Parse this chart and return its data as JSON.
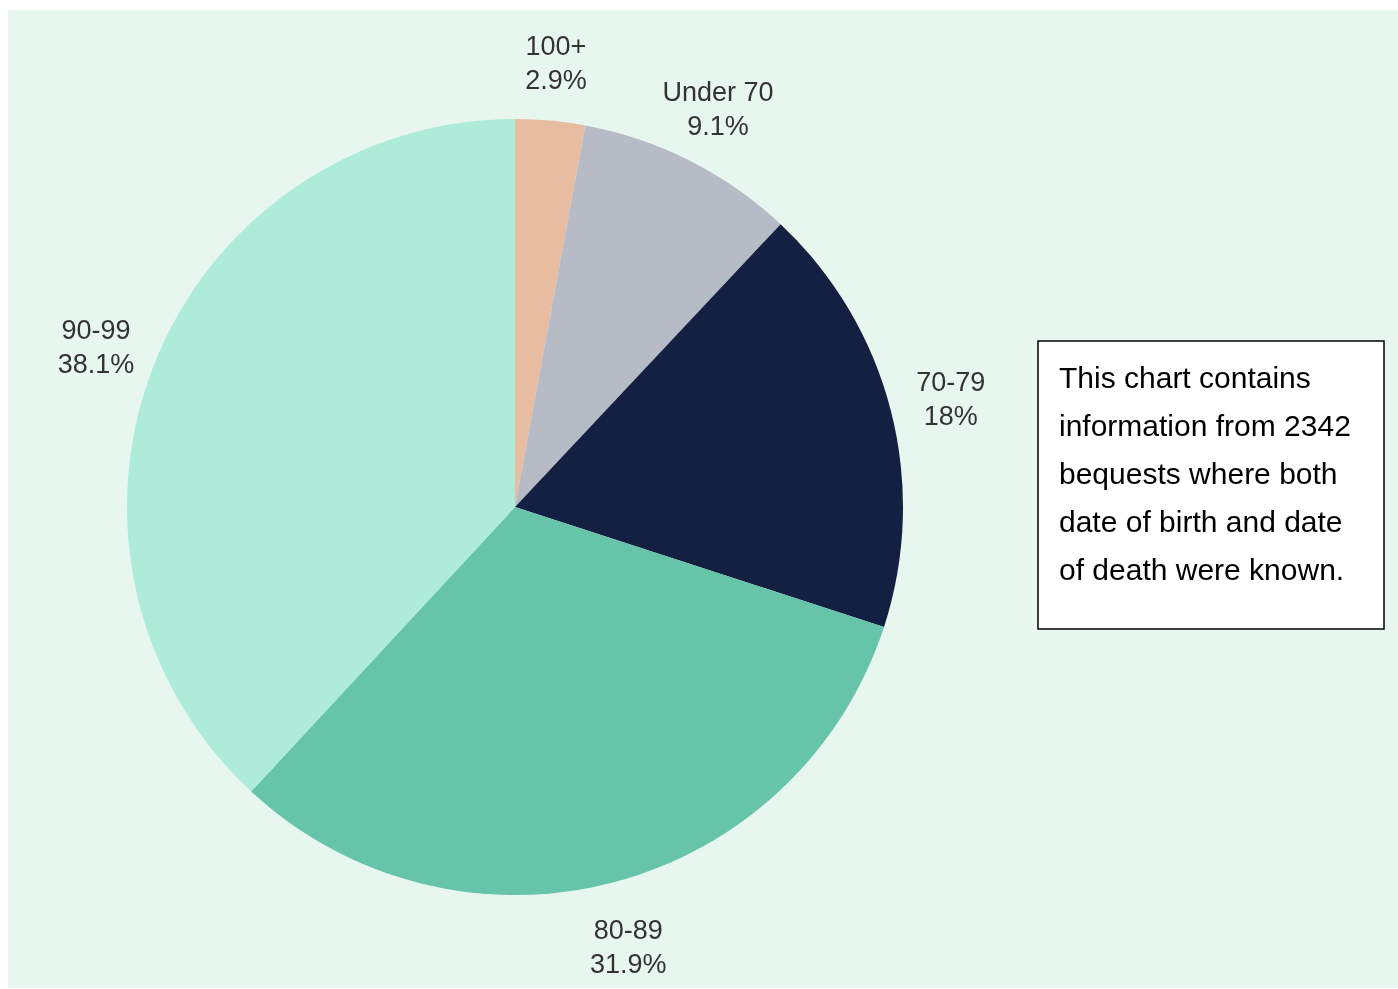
{
  "chart_data": {
    "type": "pie",
    "categories": [
      "100+",
      "Under 70",
      "70-79",
      "80-89",
      "90-99"
    ],
    "values": [
      2.9,
      9.1,
      18,
      31.9,
      38.1
    ],
    "value_labels": [
      "2.9%",
      "9.1%",
      "18%",
      "31.9%",
      "38.1%"
    ],
    "colors": [
      "#e8bca0",
      "#b6bbc6",
      "#142042",
      "#66c4a8",
      "#aeecd9"
    ],
    "annotations": [
      "This chart contains information from 2342 bequests where both date of birth and date of death were known."
    ]
  }
}
